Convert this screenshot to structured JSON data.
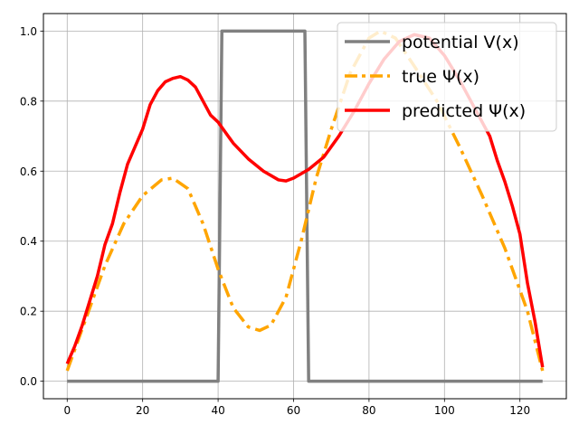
{
  "chart_data": {
    "type": "line",
    "xlim": [
      -6.3,
      132.3
    ],
    "ylim": [
      -0.05,
      1.05
    ],
    "x_ticks": [
      0,
      20,
      40,
      60,
      80,
      100,
      120
    ],
    "y_ticks": [
      0.0,
      0.2,
      0.4,
      0.6,
      0.8,
      1.0
    ],
    "x_tick_labels": [
      "0",
      "20",
      "40",
      "60",
      "80",
      "100",
      "120"
    ],
    "y_tick_labels": [
      "0.0",
      "0.2",
      "0.4",
      "0.6",
      "0.8",
      "1.0"
    ],
    "grid": true,
    "legend_position": "upper right",
    "series": [
      {
        "name": "potential V(x)",
        "color": "#808080",
        "style": "solid",
        "points": [
          [
            0,
            0
          ],
          [
            40,
            0
          ],
          [
            41,
            1
          ],
          [
            63,
            1
          ],
          [
            64,
            0
          ],
          [
            126,
            0
          ]
        ]
      },
      {
        "name": "true Ψ(x)",
        "color": "#ffa500",
        "style": "dashdot",
        "points": [
          [
            0,
            0.03
          ],
          [
            5,
            0.18
          ],
          [
            10,
            0.33
          ],
          [
            15,
            0.45
          ],
          [
            20,
            0.53
          ],
          [
            25,
            0.575
          ],
          [
            28,
            0.58
          ],
          [
            32,
            0.55
          ],
          [
            36,
            0.45
          ],
          [
            40,
            0.32
          ],
          [
            44,
            0.21
          ],
          [
            48,
            0.155
          ],
          [
            51,
            0.145
          ],
          [
            54,
            0.16
          ],
          [
            58,
            0.24
          ],
          [
            62,
            0.4
          ],
          [
            66,
            0.58
          ],
          [
            70,
            0.72
          ],
          [
            75,
            0.88
          ],
          [
            80,
            0.98
          ],
          [
            83,
            1.0
          ],
          [
            87,
            0.98
          ],
          [
            92,
            0.9
          ],
          [
            98,
            0.8
          ],
          [
            104,
            0.67
          ],
          [
            110,
            0.53
          ],
          [
            116,
            0.38
          ],
          [
            122,
            0.2
          ],
          [
            126,
            0.03
          ]
        ]
      },
      {
        "name": "predicted Ψ(x)",
        "color": "#ff0000",
        "style": "solid",
        "points": [
          [
            0,
            0.05
          ],
          [
            2,
            0.1
          ],
          [
            4,
            0.16
          ],
          [
            6,
            0.23
          ],
          [
            8,
            0.3
          ],
          [
            10,
            0.39
          ],
          [
            12,
            0.45
          ],
          [
            14,
            0.54
          ],
          [
            16,
            0.62
          ],
          [
            18,
            0.67
          ],
          [
            20,
            0.72
          ],
          [
            22,
            0.79
          ],
          [
            24,
            0.83
          ],
          [
            26,
            0.855
          ],
          [
            28,
            0.865
          ],
          [
            30,
            0.87
          ],
          [
            32,
            0.86
          ],
          [
            34,
            0.84
          ],
          [
            36,
            0.8
          ],
          [
            38,
            0.76
          ],
          [
            40,
            0.74
          ],
          [
            44,
            0.68
          ],
          [
            48,
            0.635
          ],
          [
            52,
            0.6
          ],
          [
            56,
            0.575
          ],
          [
            58,
            0.572
          ],
          [
            60,
            0.58
          ],
          [
            64,
            0.605
          ],
          [
            68,
            0.64
          ],
          [
            72,
            0.7
          ],
          [
            76,
            0.77
          ],
          [
            80,
            0.85
          ],
          [
            84,
            0.92
          ],
          [
            88,
            0.97
          ],
          [
            92,
            0.99
          ],
          [
            96,
            0.98
          ],
          [
            100,
            0.93
          ],
          [
            104,
            0.86
          ],
          [
            108,
            0.78
          ],
          [
            112,
            0.7
          ],
          [
            114,
            0.63
          ],
          [
            116,
            0.57
          ],
          [
            118,
            0.5
          ],
          [
            120,
            0.42
          ],
          [
            122,
            0.28
          ],
          [
            124,
            0.17
          ],
          [
            126,
            0.04
          ]
        ]
      }
    ]
  }
}
